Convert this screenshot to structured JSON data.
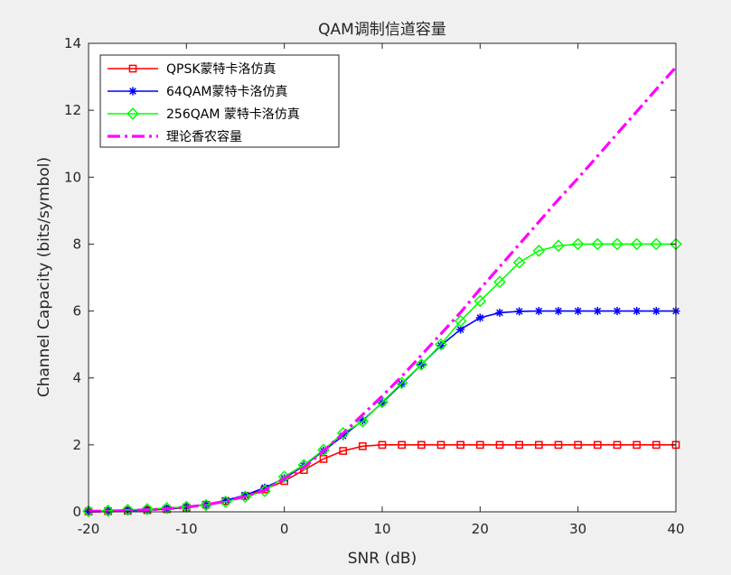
{
  "chart_data": {
    "type": "line",
    "title": "QAM调制信道容量",
    "xlabel": "SNR (dB)",
    "ylabel": "Channel Capacity (bits/symbol)",
    "xlim": [
      -20,
      40
    ],
    "ylim": [
      0,
      14
    ],
    "xticks": [
      -20,
      -10,
      0,
      10,
      20,
      30,
      40
    ],
    "yticks": [
      0,
      2,
      4,
      6,
      8,
      10,
      12,
      14
    ],
    "grid": false,
    "legend_position": "top-left",
    "series": [
      {
        "name": "QPSK蒙特卡洛仿真",
        "color": "#ff0000",
        "marker": "square",
        "line_style": "solid",
        "x": [
          -20,
          -18,
          -16,
          -14,
          -12,
          -10,
          -8,
          -6,
          -4,
          -2,
          0,
          2,
          4,
          6,
          8,
          10,
          12,
          14,
          16,
          18,
          20,
          22,
          24,
          26,
          28,
          30,
          32,
          34,
          36,
          38,
          40
        ],
        "values": [
          0.01,
          0.02,
          0.03,
          0.05,
          0.08,
          0.13,
          0.21,
          0.32,
          0.47,
          0.67,
          0.92,
          1.25,
          1.58,
          1.82,
          1.96,
          2.0,
          2.0,
          2.0,
          2.0,
          2.0,
          2.0,
          2.0,
          2.0,
          2.0,
          2.0,
          2.0,
          2.0,
          2.0,
          2.0,
          2.0,
          2.0
        ]
      },
      {
        "name": "64QAM蒙特卡洛仿真",
        "color": "#0000ff",
        "marker": "asterisk",
        "line_style": "solid",
        "x": [
          -20,
          -18,
          -16,
          -14,
          -12,
          -10,
          -8,
          -6,
          -4,
          -2,
          0,
          2,
          4,
          6,
          8,
          10,
          12,
          14,
          16,
          18,
          20,
          22,
          24,
          26,
          28,
          30,
          32,
          34,
          36,
          38,
          40
        ],
        "values": [
          0.01,
          0.02,
          0.04,
          0.06,
          0.09,
          0.14,
          0.22,
          0.34,
          0.5,
          0.72,
          1.0,
          1.38,
          1.82,
          2.27,
          2.73,
          3.26,
          3.82,
          4.4,
          4.97,
          5.45,
          5.8,
          5.95,
          5.99,
          6.0,
          6.0,
          6.0,
          6.0,
          6.0,
          6.0,
          6.0,
          6.0
        ]
      },
      {
        "name": "256QAM 蒙特卡洛仿真",
        "color": "#00ff00",
        "marker": "diamond",
        "line_style": "solid",
        "x": [
          -20,
          -18,
          -16,
          -14,
          -12,
          -10,
          -8,
          -6,
          -4,
          -2,
          0,
          2,
          4,
          6,
          8,
          10,
          12,
          14,
          16,
          18,
          20,
          22,
          24,
          26,
          28,
          30,
          32,
          34,
          36,
          38,
          40
        ],
        "values": [
          0.02,
          0.03,
          0.06,
          0.08,
          0.11,
          0.15,
          0.2,
          0.3,
          0.45,
          0.62,
          1.05,
          1.4,
          1.85,
          2.35,
          2.7,
          3.28,
          3.85,
          4.4,
          5.0,
          5.7,
          6.3,
          6.87,
          7.45,
          7.8,
          7.95,
          8.0,
          8.0,
          8.0,
          8.0,
          8.0,
          8.0
        ]
      },
      {
        "name": "理论香农容量",
        "color": "#ff00ff",
        "marker": "none",
        "line_style": "dash-dot",
        "x": [
          -20,
          -18,
          -16,
          -14,
          -12,
          -10,
          -8,
          -6,
          -4,
          -2,
          0,
          2,
          4,
          6,
          8,
          10,
          12,
          14,
          16,
          18,
          20,
          22,
          24,
          26,
          28,
          30,
          32,
          34,
          36,
          38,
          40
        ],
        "values": [
          0.0144,
          0.0228,
          0.0361,
          0.0569,
          0.0894,
          0.1375,
          0.2106,
          0.3154,
          0.4587,
          0.6449,
          1.0,
          1.3214,
          1.8161,
          2.3398,
          2.9037,
          3.4594,
          4.0488,
          4.6811,
          5.3196,
          5.9567,
          6.6582,
          7.3223,
          7.9931,
          8.6642,
          9.3331,
          9.9673,
          10.6332,
          11.2976,
          11.9616,
          12.6293,
          13.2877
        ]
      }
    ]
  }
}
